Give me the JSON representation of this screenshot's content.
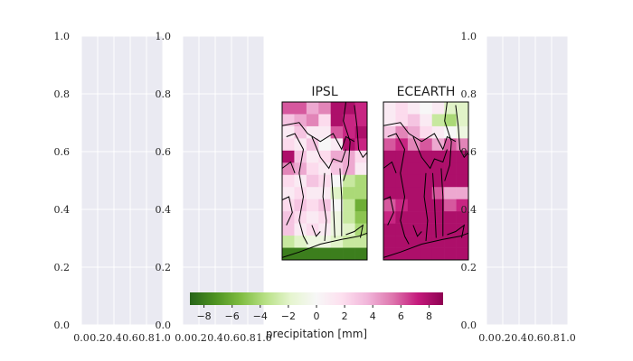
{
  "chart_data": [
    {
      "type": "empty",
      "panel": "axes-1",
      "xticks": [
        "0.0",
        "0.2",
        "0.4",
        "0.6",
        "0.8",
        "1.0"
      ],
      "yticks": [
        "0.0",
        "0.2",
        "0.4",
        "0.6",
        "0.8",
        "1.0"
      ],
      "xlim": [
        0,
        1
      ],
      "ylim": [
        0,
        1
      ],
      "grid": true
    },
    {
      "type": "empty",
      "panel": "axes-2",
      "xticks": [
        "0.0",
        "0.2",
        "0.4",
        "0.6",
        "0.8",
        "1.0"
      ],
      "yticks": [
        "0.0",
        "0.2",
        "0.4",
        "0.6",
        "0.8",
        "1.0"
      ],
      "xlim": [
        0,
        1
      ],
      "ylim": [
        0,
        1
      ],
      "grid": true
    },
    {
      "type": "heatmap",
      "panel": "map-ipsl",
      "title": "IPSL",
      "units": "precipitation [mm]",
      "values": [
        [
          6,
          6,
          4,
          5,
          8,
          8,
          7
        ],
        [
          3,
          4,
          5,
          2,
          8,
          7,
          7
        ],
        [
          1,
          3,
          1,
          1,
          6,
          7,
          8
        ],
        [
          2,
          1,
          3,
          0,
          1,
          8,
          7
        ],
        [
          8,
          3,
          1,
          2,
          4,
          4,
          2
        ],
        [
          5,
          4,
          2,
          1,
          3,
          4,
          1
        ],
        [
          2,
          1,
          3,
          2,
          0,
          -3,
          -4
        ],
        [
          1,
          2,
          1,
          1,
          -2,
          -4,
          -4
        ],
        [
          2,
          3,
          2,
          3,
          0,
          -3,
          -6
        ],
        [
          3,
          2,
          1,
          2,
          -1,
          -3,
          -5
        ],
        [
          3,
          1,
          2,
          1,
          -1,
          -2,
          -4
        ],
        [
          -3,
          -2,
          -1,
          -1,
          -2,
          -3,
          -3
        ],
        [
          -8,
          -8,
          -8,
          -8,
          -8,
          -8,
          -8
        ]
      ]
    },
    {
      "type": "heatmap",
      "panel": "map-ecearth",
      "title": "ECEARTH",
      "units": "precipitation [mm]",
      "values": [
        [
          1,
          2,
          1,
          0,
          1,
          -2,
          -2
        ],
        [
          1,
          2,
          3,
          1,
          -3,
          -4,
          -2
        ],
        [
          3,
          5,
          4,
          2,
          1,
          0,
          -1
        ],
        [
          6,
          7,
          5,
          6,
          4,
          6,
          5
        ],
        [
          8,
          8,
          8,
          8,
          8,
          8,
          8
        ],
        [
          8,
          8,
          8,
          8,
          8,
          8,
          8
        ],
        [
          8,
          8,
          8,
          8,
          8,
          8,
          8
        ],
        [
          8,
          8,
          8,
          8,
          6,
          4,
          4
        ],
        [
          6,
          7,
          8,
          8,
          8,
          6,
          7
        ],
        [
          7,
          8,
          8,
          8,
          8,
          8,
          8
        ],
        [
          8,
          8,
          8,
          8,
          8,
          8,
          8
        ],
        [
          8,
          8,
          8,
          8,
          8,
          8,
          8
        ],
        [
          8,
          8,
          8,
          8,
          8,
          8,
          8
        ]
      ]
    },
    {
      "type": "empty",
      "panel": "axes-3",
      "xticks": [
        "0.0",
        "0.2",
        "0.4",
        "0.6",
        "0.8",
        "1.0"
      ],
      "yticks": [
        "0.0",
        "0.2",
        "0.4",
        "0.6",
        "0.8",
        "1.0"
      ],
      "xlim": [
        0,
        1
      ],
      "ylim": [
        0,
        1
      ],
      "grid": true
    }
  ],
  "colorbar": {
    "label": "precipitation [mm]",
    "range": [
      -9,
      9
    ],
    "ticks": [
      "−8",
      "−6",
      "−4",
      "−2",
      "0",
      "2",
      "4",
      "6",
      "8"
    ],
    "colormap": "PiYG_r"
  },
  "colors": {
    "axes_bg": "#eaeaf2",
    "grid": "#ffffff",
    "land_line": "#000000"
  }
}
